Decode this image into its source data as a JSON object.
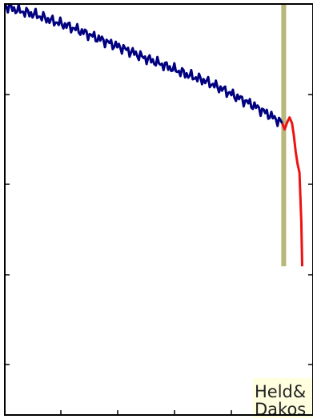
{
  "chart_data": {
    "type": "line",
    "title": "",
    "xlabel": "",
    "ylabel": "",
    "xlim": [
      0,
      100
    ],
    "ylim": [
      0,
      100
    ],
    "grid": false,
    "series": [
      {
        "color": "#000080",
        "x": [
          0,
          5,
          10,
          15,
          20,
          25,
          30,
          35,
          40,
          45,
          50,
          55,
          60,
          65,
          70,
          75,
          80,
          85,
          90
        ],
        "y": [
          99.5,
          98.3,
          97.4,
          96.0,
          94.8,
          93.3,
          91.7,
          90.2,
          88.7,
          87.0,
          85.6,
          84.1,
          82.6,
          81.3,
          79.5,
          77.5,
          75.6,
          73.4,
          71.0
        ]
      },
      {
        "color": "#ee1111",
        "x": [
          90,
          90.8,
          91.6,
          92.4,
          93.2,
          93.8,
          94.4,
          95.0,
          95.6,
          96.2,
          96.5
        ],
        "y": [
          71.0,
          69.5,
          71.2,
          72.4,
          71.0,
          68.0,
          64.0,
          61.0,
          59.0,
          47.0,
          36.2
        ]
      }
    ],
    "vline": {
      "x": 90.5,
      "y_range": [
        36.2,
        100
      ],
      "color": "#b8b878"
    },
    "annotation": {
      "lines": [
        "Held&",
        "Dakos"
      ],
      "background": "#ffffe0"
    }
  }
}
